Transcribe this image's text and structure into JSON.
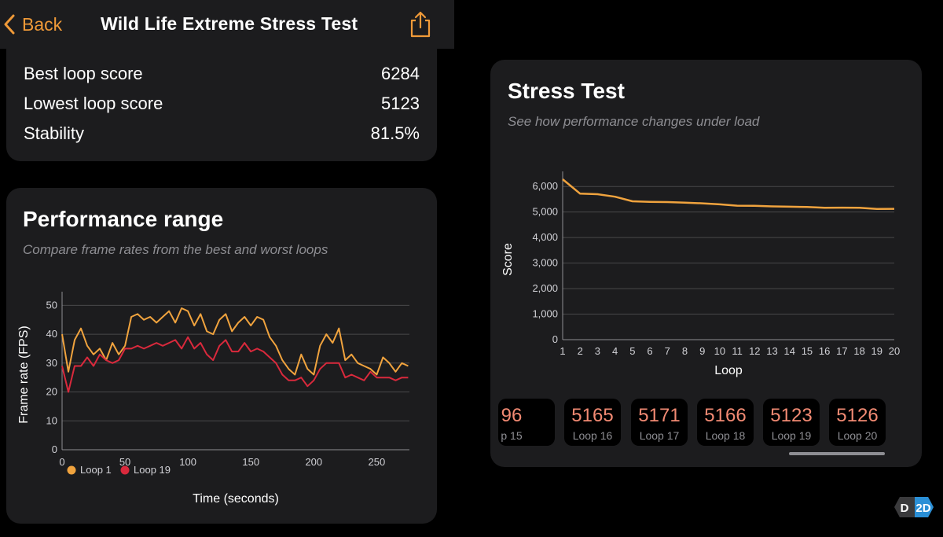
{
  "nav": {
    "back_label": "Back",
    "title": "Wild Life Extreme Stress Test"
  },
  "scores": [
    {
      "label": "Best loop score",
      "value": "6284"
    },
    {
      "label": "Lowest loop score",
      "value": "5123"
    },
    {
      "label": "Stability",
      "value": "81.5%"
    }
  ],
  "performance": {
    "title": "Performance range",
    "subtitle": "Compare frame rates from the best and worst loops",
    "chart_data": {
      "type": "line",
      "title": "Performance range",
      "xlabel": "Time (seconds)",
      "ylabel": "Frame rate (FPS)",
      "xlim": [
        0,
        276
      ],
      "ylim": [
        0,
        52
      ],
      "xticks": [
        "0",
        "50",
        "100",
        "150",
        "200",
        "250"
      ],
      "yticks": [
        "0",
        "10",
        "20",
        "30",
        "40",
        "50"
      ],
      "legend": "bottom-left",
      "grid": true,
      "series": [
        {
          "name": "Loop 1",
          "color": "#f0a33e",
          "x": [
            0,
            5,
            10,
            15,
            20,
            25,
            30,
            35,
            40,
            45,
            50,
            55,
            60,
            65,
            70,
            75,
            80,
            85,
            90,
            95,
            100,
            105,
            110,
            115,
            120,
            125,
            130,
            135,
            140,
            145,
            150,
            155,
            160,
            165,
            170,
            175,
            180,
            185,
            190,
            195,
            200,
            205,
            210,
            215,
            220,
            225,
            230,
            235,
            240,
            245,
            250,
            255,
            260,
            265,
            270,
            275
          ],
          "y": [
            40,
            27,
            38,
            42,
            36,
            33,
            35,
            31,
            37,
            33,
            36,
            46,
            47,
            45,
            46,
            44,
            46,
            48,
            44,
            49,
            48,
            43,
            47,
            41,
            40,
            45,
            47,
            41,
            44,
            46,
            43,
            46,
            45,
            39,
            36,
            31,
            28,
            26,
            33,
            28,
            26,
            36,
            40,
            37,
            42,
            31,
            33,
            30,
            29,
            28,
            26,
            32,
            30,
            27,
            30,
            29
          ]
        },
        {
          "name": "Loop 19",
          "color": "#d9293c",
          "x": [
            0,
            5,
            10,
            15,
            20,
            25,
            30,
            35,
            40,
            45,
            50,
            55,
            60,
            65,
            70,
            75,
            80,
            85,
            90,
            95,
            100,
            105,
            110,
            115,
            120,
            125,
            130,
            135,
            140,
            145,
            150,
            155,
            160,
            165,
            170,
            175,
            180,
            185,
            190,
            195,
            200,
            205,
            210,
            215,
            220,
            225,
            230,
            235,
            240,
            245,
            250,
            255,
            260,
            265,
            270,
            275
          ],
          "y": [
            29,
            20,
            29,
            29,
            32,
            29,
            33,
            31,
            30,
            31,
            35,
            35,
            36,
            35,
            36,
            37,
            36,
            37,
            38,
            35,
            39,
            35,
            37,
            33,
            31,
            36,
            38,
            34,
            34,
            37,
            34,
            35,
            34,
            32,
            30,
            26,
            24,
            24,
            25,
            22,
            24,
            28,
            30,
            30,
            30,
            25,
            26,
            25,
            24,
            27,
            25,
            25,
            25,
            24,
            25,
            25
          ]
        }
      ]
    }
  },
  "stress": {
    "title": "Stress Test",
    "subtitle": "See how performance changes under load",
    "chart_data": {
      "type": "line",
      "title": "Stress Test",
      "xlabel": "Loop",
      "ylabel": "Score",
      "xlim": [
        1,
        20
      ],
      "ylim": [
        0,
        6284
      ],
      "xticks": [
        "1",
        "2",
        "3",
        "4",
        "5",
        "6",
        "7",
        "8",
        "9",
        "10",
        "11",
        "12",
        "13",
        "14",
        "15",
        "16",
        "17",
        "18",
        "19",
        "20"
      ],
      "yticks": [
        "0",
        "1,000",
        "2,000",
        "3,000",
        "4,000",
        "5,000",
        "6,000"
      ],
      "grid": true,
      "series": [
        {
          "color": "#f0a33e",
          "x": [
            1,
            2,
            3,
            4,
            5,
            6,
            7,
            8,
            9,
            10,
            11,
            12,
            13,
            14,
            15,
            16,
            17,
            18,
            19,
            20
          ],
          "y": [
            6284,
            5720,
            5700,
            5600,
            5420,
            5400,
            5390,
            5370,
            5340,
            5300,
            5250,
            5245,
            5220,
            5210,
            5196,
            5165,
            5171,
            5166,
            5123,
            5126
          ]
        }
      ]
    },
    "tiles": [
      {
        "value": "96",
        "label": "p 15"
      },
      {
        "value": "5165",
        "label": "Loop 16"
      },
      {
        "value": "5171",
        "label": "Loop 17"
      },
      {
        "value": "5166",
        "label": "Loop 18"
      },
      {
        "value": "5123",
        "label": "Loop 19"
      },
      {
        "value": "5126",
        "label": "Loop 20"
      }
    ]
  },
  "logo": {
    "text": "D2D"
  }
}
